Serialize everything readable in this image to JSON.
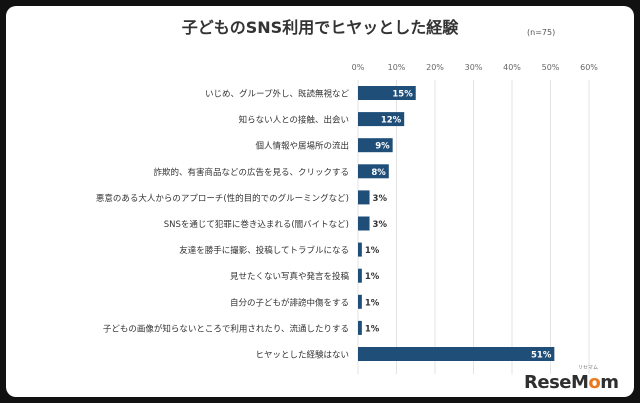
{
  "title": "子どものSNS利用でヒヤッとした経験",
  "note": "(n=75)",
  "brand": {
    "name": "ReseMom",
    "tag": "リセマム"
  },
  "colors": {
    "bar": "#1f4e79",
    "grid": "#e3e3e3",
    "text": "#333333",
    "label_on_bar": "#ffffff"
  },
  "chart_data": {
    "type": "bar",
    "orientation": "horizontal",
    "categories": [
      "いじめ、グループ外し、既読無視など",
      "知らない人との接触、出会い",
      "個人情報や居場所の流出",
      "詐欺的、有害商品などの広告を見る、クリックする",
      "悪意のある大人からのアプローチ(性的目的でのグルーミングなど)",
      "SNSを通じて犯罪に巻き込まれる(闇バイトなど)",
      "友達を勝手に撮影、投稿してトラブルになる",
      "見せたくない写真や発言を投稿",
      "自分の子どもが誹謗中傷をする",
      "子どもの画像が知らないところで利用されたり、流通したりする",
      "ヒヤッとした経験はない"
    ],
    "values": [
      15,
      12,
      9,
      8,
      3,
      3,
      1,
      1,
      1,
      1,
      51
    ],
    "value_labels": [
      "15%",
      "12%",
      "9%",
      "8%",
      "3%",
      "3%",
      "1%",
      "1%",
      "1%",
      "1%",
      "51%"
    ],
    "x_ticks": [
      "0%",
      "10%",
      "20%",
      "30%",
      "40%",
      "50%",
      "60%"
    ],
    "xlim": [
      0,
      60
    ],
    "grid": true
  }
}
